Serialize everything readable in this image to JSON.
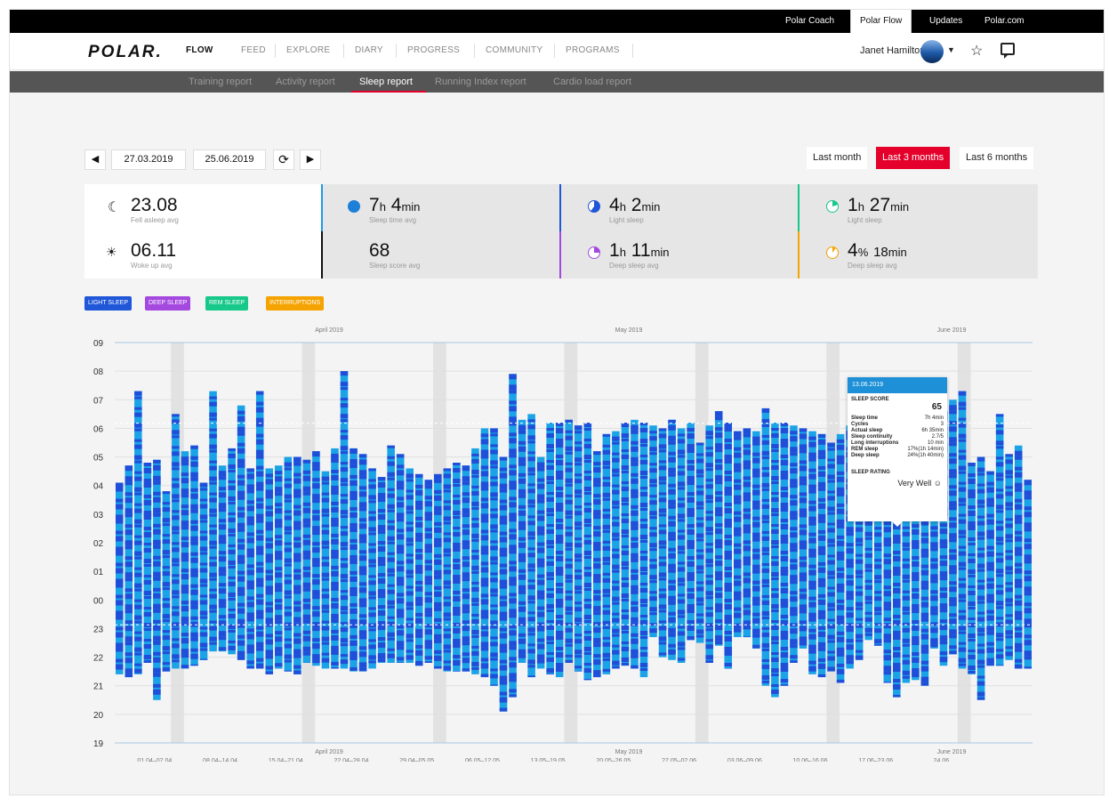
{
  "topbar": {
    "links": [
      "Polar Coach",
      "Polar Flow",
      "Updates",
      "Polar.com"
    ],
    "active": "Polar Flow"
  },
  "nav": {
    "logo": "POLAR.",
    "items": [
      "FLOW",
      "FEED",
      "EXPLORE",
      "DIARY",
      "PROGRESS",
      "COMMUNITY",
      "PROGRAMS"
    ],
    "user": "Janet Hamilton",
    "star_icon": "star-icon",
    "messages_icon": "chat-icon"
  },
  "subnav": {
    "items": [
      "Training report",
      "Activity report",
      "Sleep report",
      "Running Index report",
      "Cardio load report"
    ],
    "active": "Sleep report"
  },
  "controls": {
    "prev": "◀",
    "start_date": "27.03.2019",
    "end_date": "25.06.2019",
    "refresh": "⟳",
    "next": "▶"
  },
  "ranges": {
    "items": [
      "Last month",
      "Last 3 months",
      "Last 6 months"
    ],
    "active": "Last 3 months"
  },
  "stats": {
    "fell_asleep": {
      "value": "23.08",
      "label": "Fell asleep avg"
    },
    "woke_up": {
      "value": "06.11",
      "label": "Woke up avg"
    },
    "sleep_time": {
      "h": "7",
      "m": "4",
      "label": "Sleep time avg"
    },
    "sleep_score": {
      "value": "68",
      "label": "Sleep score avg"
    },
    "light_sleep": {
      "h": "4",
      "m": "2",
      "label": "Light sleep"
    },
    "deep_sleep": {
      "h": "1",
      "m": "11",
      "label": "Deep sleep avg"
    },
    "light_sleep2": {
      "h": "1",
      "m": "27",
      "label": "Light sleep"
    },
    "deep_sleep2": {
      "pct": "4",
      "m": "18",
      "label": "Deep sleep avg"
    },
    "unit_h": "h",
    "unit_min": "min",
    "unit_pct": "%"
  },
  "legend": [
    {
      "label": "LIGHT SLEEP",
      "color": "#2056d8"
    },
    {
      "label": "DEEP SLEEP",
      "color": "#a448e0"
    },
    {
      "label": "REM SLEEP",
      "color": "#16c98a"
    },
    {
      "label": "INTERRUPTIONS",
      "color": "#f5a300"
    }
  ],
  "tooltip": {
    "date": "13.06.2019",
    "score_label": "SLEEP SCORE",
    "score": "65",
    "rows": [
      [
        "Sleep time",
        "7h 4min"
      ],
      [
        "Cycles",
        "3"
      ],
      [
        "Actual sleep",
        "6h 35min"
      ],
      [
        "Sleep continuity",
        "2.7/5"
      ],
      [
        "Long interruptions",
        "10 min"
      ],
      [
        "REM sleep",
        "17%(1h 14min)"
      ],
      [
        "Deep sleep",
        "24%(1h 40min)"
      ]
    ],
    "rating_label": "SLEEP RATING",
    "rating": "Very Well"
  },
  "chart_data": {
    "type": "bar",
    "y_ticks": [
      "09",
      "08",
      "07",
      "06",
      "05",
      "04",
      "03",
      "02",
      "01",
      "00",
      "23",
      "22",
      "21",
      "20",
      "19"
    ],
    "months": [
      "April 2019",
      "May 2019",
      "June 2019"
    ],
    "weeks": [
      "01.04–07.04",
      "08.04–14.04",
      "15.04–21.04",
      "22.04–28.04",
      "29.04–05.05",
      "06.05–12.05",
      "13.05–19.05",
      "20.05–26.05",
      "27.05–02.06",
      "03.06–09.06",
      "10.06–16.06",
      "17.06–23.06",
      "24.06"
    ],
    "bars": [
      [
        21.4,
        4.1
      ],
      [
        21.3,
        4.7
      ],
      [
        21.4,
        7.3
      ],
      [
        21.8,
        4.8
      ],
      [
        20.5,
        4.9
      ],
      [
        21.5,
        3.8
      ],
      [
        21.6,
        6.5
      ],
      [
        21.6,
        5.2
      ],
      [
        21.7,
        5.4
      ],
      [
        21.9,
        4.1
      ],
      [
        22.2,
        7.3
      ],
      [
        22.2,
        4.7
      ],
      [
        22.1,
        5.3
      ],
      [
        21.9,
        6.8
      ],
      [
        21.6,
        4.6
      ],
      [
        21.6,
        7.3
      ],
      [
        21.4,
        4.6
      ],
      [
        21.6,
        4.7
      ],
      [
        21.5,
        5.0
      ],
      [
        21.4,
        5.0
      ],
      [
        21.8,
        4.9
      ],
      [
        21.7,
        5.2
      ],
      [
        21.6,
        4.5
      ],
      [
        21.6,
        5.3
      ],
      [
        21.6,
        8.0
      ],
      [
        21.5,
        5.3
      ],
      [
        21.5,
        5.1
      ],
      [
        21.6,
        4.6
      ],
      [
        21.8,
        4.3
      ],
      [
        21.8,
        5.4
      ],
      [
        21.8,
        5.1
      ],
      [
        21.8,
        4.6
      ],
      [
        21.7,
        4.4
      ],
      [
        21.8,
        4.2
      ],
      [
        21.6,
        4.4
      ],
      [
        21.5,
        4.6
      ],
      [
        21.5,
        4.8
      ],
      [
        21.5,
        4.7
      ],
      [
        21.4,
        5.3
      ],
      [
        21.3,
        6.0
      ],
      [
        21.0,
        6.0
      ],
      [
        20.1,
        5.0
      ],
      [
        20.6,
        7.9
      ],
      [
        21.8,
        6.3
      ],
      [
        21.3,
        6.5
      ],
      [
        21.6,
        5.0
      ],
      [
        21.4,
        6.2
      ],
      [
        21.3,
        6.2
      ],
      [
        21.8,
        6.3
      ],
      [
        21.5,
        6.1
      ],
      [
        21.2,
        6.2
      ],
      [
        21.3,
        5.2
      ],
      [
        21.4,
        5.8
      ],
      [
        21.6,
        5.9
      ],
      [
        21.7,
        6.2
      ],
      [
        21.6,
        6.3
      ],
      [
        21.3,
        6.2
      ],
      [
        22.7,
        6.1
      ],
      [
        22.0,
        6.0
      ],
      [
        21.9,
        6.3
      ],
      [
        21.8,
        6.0
      ],
      [
        22.6,
        6.2
      ],
      [
        22.5,
        5.5
      ],
      [
        21.8,
        6.1
      ],
      [
        22.4,
        6.6
      ],
      [
        21.6,
        6.2
      ],
      [
        22.7,
        5.9
      ],
      [
        22.7,
        6.0
      ],
      [
        22.3,
        5.9
      ],
      [
        21.0,
        6.7
      ],
      [
        20.6,
        6.2
      ],
      [
        21.0,
        6.2
      ],
      [
        21.8,
        6.1
      ],
      [
        22.3,
        6.0
      ],
      [
        21.4,
        5.9
      ],
      [
        21.3,
        5.8
      ],
      [
        21.5,
        5.5
      ],
      [
        21.1,
        5.8
      ],
      [
        21.6,
        6.1
      ],
      [
        21.9,
        5.9
      ],
      [
        22.6,
        6.3
      ],
      [
        22.4,
        6.1
      ],
      [
        21.1,
        6.1
      ],
      [
        20.6,
        6.2
      ],
      [
        21.1,
        6.3
      ],
      [
        21.2,
        6.2
      ],
      [
        21.0,
        5.9
      ],
      [
        22.3,
        6.5
      ],
      [
        21.7,
        6.6
      ],
      [
        22.1,
        7.0
      ],
      [
        21.6,
        7.3
      ],
      [
        21.4,
        4.8
      ],
      [
        20.5,
        5.0
      ],
      [
        21.7,
        4.5
      ],
      [
        21.7,
        6.5
      ],
      [
        21.9,
        5.1
      ],
      [
        21.6,
        5.4
      ],
      [
        21.6,
        4.2
      ]
    ],
    "ylim": [
      19,
      33
    ]
  }
}
